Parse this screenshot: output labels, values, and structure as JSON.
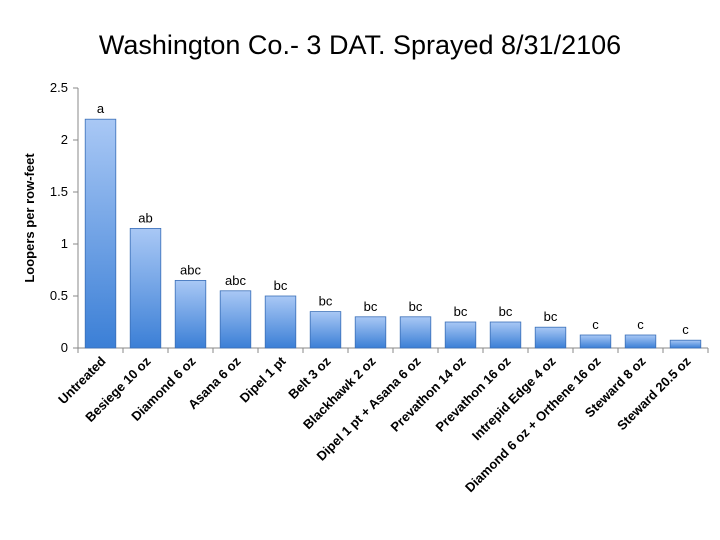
{
  "chart_data": {
    "type": "bar",
    "title": "Washington Co.- 3 DAT. Sprayed 8/31/2106",
    "xlabel": "",
    "ylabel": "Loopers per row-feet",
    "ylim": [
      0,
      2.5
    ],
    "yticks": [
      "0",
      "0.5",
      "1",
      "1.5",
      "2",
      "2.5"
    ],
    "grid": false,
    "categories": [
      "Untreated",
      "Besiege 10 oz",
      "Diamond 6 oz",
      "Asana 6 oz",
      "Dipel 1 pt",
      "Belt 3 oz",
      "Blackhawk 2 oz",
      "Dipel 1 pt + Asana 6 oz",
      "Prevathon 14 oz",
      "Prevathon 16 oz",
      "Intrepid Edge 4 oz",
      "Diamond 6 oz + Orthene 16 oz",
      "Steward 8 oz",
      "Steward 20.5 oz"
    ],
    "values": [
      2.2,
      1.15,
      0.65,
      0.55,
      0.5,
      0.35,
      0.3,
      0.3,
      0.25,
      0.25,
      0.2,
      0.125,
      0.125,
      0.075
    ],
    "data_labels": [
      "a",
      "ab",
      "abc",
      "abc",
      "bc",
      "bc",
      "bc",
      "bc",
      "bc",
      "bc",
      "bc",
      "c",
      "c",
      "c"
    ],
    "colors": {
      "bar_top": "#a9c8f5",
      "bar_bottom": "#3b7fd6",
      "bar_stroke": "#3a6fb8",
      "axis": "#888888"
    }
  }
}
